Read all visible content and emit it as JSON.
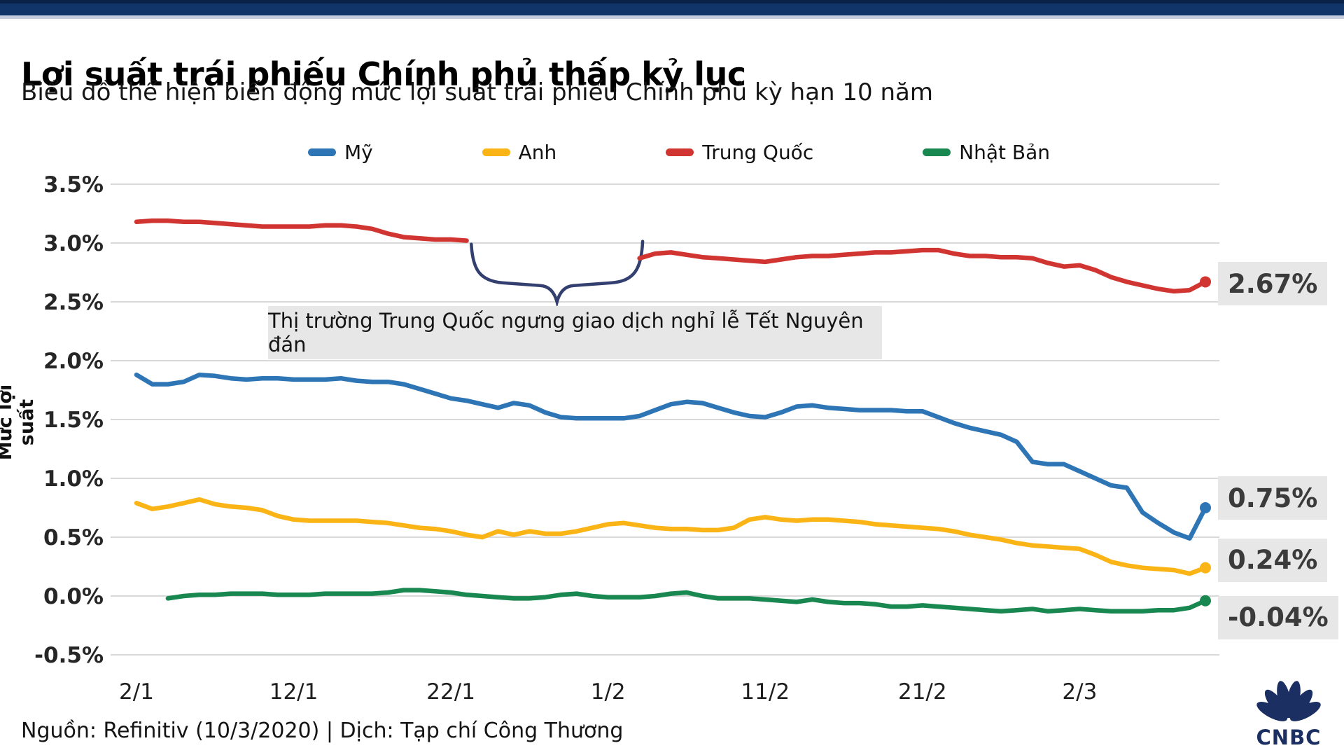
{
  "header": {
    "title": "Lợi suất trái phiếu Chính phủ thấp kỷ lục",
    "subtitle": "Biểu đồ thể hiện biến động mức lợi suất trái phiếu Chính phủ kỳ hạn 10 năm"
  },
  "source_line": "Nguồn: Refinitiv (10/3/2020) | Dịch: Tạp chí Công Thương",
  "logo_text": "CNBC",
  "colors": {
    "topbar": "#113469",
    "gridline": "#d9d9d9",
    "label_bg": "#e7e7e7",
    "brace": "#333f6e",
    "logo_navy": "#1b2f63"
  },
  "chart_data": {
    "type": "line",
    "title": "Lợi suất trái phiếu Chính phủ thấp kỷ lục",
    "ylabel": "Mức lợi suất",
    "ylim": [
      -0.5,
      3.5
    ],
    "grid": "horizontal",
    "legend_position": "top",
    "y_ticks": [
      3.5,
      3.0,
      2.5,
      2.0,
      1.5,
      1.0,
      0.5,
      0.0,
      -0.5
    ],
    "y_tick_labels": [
      "3.5%",
      "3.0%",
      "2.5%",
      "2.0%",
      "1.5%",
      "1.0%",
      "0.5%",
      "0.0%",
      "-0.5%"
    ],
    "x_tick_days": [
      0,
      10,
      20,
      30,
      40,
      50,
      60
    ],
    "x_tick_labels": [
      "2/1",
      "12/1",
      "22/1",
      "1/2",
      "11/2",
      "21/2",
      "2/3"
    ],
    "x_range_days": [
      0,
      68
    ],
    "annotation": {
      "text": "Thị trường Trung Quốc ngưng giao dịch nghỉ lễ Tết Nguyên đán",
      "brace": {
        "from_day": 21.3,
        "to_day": 32.2,
        "top_v": 2.99,
        "body_v": 2.68,
        "tip_v": 2.5
      }
    },
    "series": [
      {
        "name": "Mỹ",
        "color": "#2e75b6",
        "end_label": "0.75%",
        "label_dy": -14,
        "segments": [
          [
            [
              0,
              1.88
            ],
            [
              1,
              1.8
            ],
            [
              2,
              1.8
            ],
            [
              3,
              1.82
            ],
            [
              4,
              1.88
            ],
            [
              5,
              1.87
            ],
            [
              6,
              1.85
            ],
            [
              7,
              1.84
            ],
            [
              8,
              1.85
            ],
            [
              9,
              1.85
            ],
            [
              10,
              1.84
            ],
            [
              11,
              1.84
            ],
            [
              12,
              1.84
            ],
            [
              13,
              1.85
            ],
            [
              14,
              1.83
            ],
            [
              15,
              1.82
            ],
            [
              16,
              1.82
            ],
            [
              17,
              1.8
            ],
            [
              18,
              1.76
            ],
            [
              19,
              1.72
            ],
            [
              20,
              1.68
            ],
            [
              21,
              1.66
            ],
            [
              22,
              1.63
            ],
            [
              23,
              1.6
            ],
            [
              24,
              1.64
            ],
            [
              25,
              1.62
            ],
            [
              26,
              1.56
            ],
            [
              27,
              1.52
            ],
            [
              28,
              1.51
            ],
            [
              29,
              1.51
            ],
            [
              30,
              1.51
            ],
            [
              31,
              1.51
            ],
            [
              32,
              1.53
            ],
            [
              33,
              1.58
            ],
            [
              34,
              1.63
            ],
            [
              35,
              1.65
            ],
            [
              36,
              1.64
            ],
            [
              37,
              1.6
            ],
            [
              38,
              1.56
            ],
            [
              39,
              1.53
            ],
            [
              40,
              1.52
            ],
            [
              41,
              1.56
            ],
            [
              42,
              1.61
            ],
            [
              43,
              1.62
            ],
            [
              44,
              1.6
            ],
            [
              45,
              1.59
            ],
            [
              46,
              1.58
            ],
            [
              47,
              1.58
            ],
            [
              48,
              1.58
            ],
            [
              49,
              1.57
            ],
            [
              50,
              1.57
            ],
            [
              51,
              1.52
            ],
            [
              52,
              1.47
            ],
            [
              53,
              1.43
            ],
            [
              54,
              1.4
            ],
            [
              55,
              1.37
            ],
            [
              56,
              1.31
            ],
            [
              57,
              1.14
            ],
            [
              58,
              1.12
            ],
            [
              59,
              1.12
            ],
            [
              60,
              1.06
            ],
            [
              61,
              1.0
            ],
            [
              62,
              0.94
            ],
            [
              63,
              0.92
            ],
            [
              64,
              0.71
            ],
            [
              65,
              0.62
            ],
            [
              66,
              0.54
            ],
            [
              67,
              0.49
            ],
            [
              68,
              0.75
            ]
          ]
        ]
      },
      {
        "name": "Anh",
        "color": "#fbb416",
        "end_label": "0.24%",
        "label_dy": -11,
        "segments": [
          [
            [
              0,
              0.79
            ],
            [
              1,
              0.74
            ],
            [
              2,
              0.76
            ],
            [
              3,
              0.79
            ],
            [
              4,
              0.82
            ],
            [
              5,
              0.78
            ],
            [
              6,
              0.76
            ],
            [
              7,
              0.75
            ],
            [
              8,
              0.73
            ],
            [
              9,
              0.68
            ],
            [
              10,
              0.65
            ],
            [
              11,
              0.64
            ],
            [
              12,
              0.64
            ],
            [
              13,
              0.64
            ],
            [
              14,
              0.64
            ],
            [
              15,
              0.63
            ],
            [
              16,
              0.62
            ],
            [
              17,
              0.6
            ],
            [
              18,
              0.58
            ],
            [
              19,
              0.57
            ],
            [
              20,
              0.55
            ],
            [
              21,
              0.52
            ],
            [
              22,
              0.5
            ],
            [
              23,
              0.55
            ],
            [
              24,
              0.52
            ],
            [
              25,
              0.55
            ],
            [
              26,
              0.53
            ],
            [
              27,
              0.53
            ],
            [
              28,
              0.55
            ],
            [
              29,
              0.58
            ],
            [
              30,
              0.61
            ],
            [
              31,
              0.62
            ],
            [
              32,
              0.6
            ],
            [
              33,
              0.58
            ],
            [
              34,
              0.57
            ],
            [
              35,
              0.57
            ],
            [
              36,
              0.56
            ],
            [
              37,
              0.56
            ],
            [
              38,
              0.58
            ],
            [
              39,
              0.65
            ],
            [
              40,
              0.67
            ],
            [
              41,
              0.65
            ],
            [
              42,
              0.64
            ],
            [
              43,
              0.65
            ],
            [
              44,
              0.65
            ],
            [
              45,
              0.64
            ],
            [
              46,
              0.63
            ],
            [
              47,
              0.61
            ],
            [
              48,
              0.6
            ],
            [
              49,
              0.59
            ],
            [
              50,
              0.58
            ],
            [
              51,
              0.57
            ],
            [
              52,
              0.55
            ],
            [
              53,
              0.52
            ],
            [
              54,
              0.5
            ],
            [
              55,
              0.48
            ],
            [
              56,
              0.45
            ],
            [
              57,
              0.43
            ],
            [
              58,
              0.42
            ],
            [
              59,
              0.41
            ],
            [
              60,
              0.4
            ],
            [
              61,
              0.35
            ],
            [
              62,
              0.29
            ],
            [
              63,
              0.26
            ],
            [
              64,
              0.24
            ],
            [
              65,
              0.23
            ],
            [
              66,
              0.22
            ],
            [
              67,
              0.19
            ],
            [
              68,
              0.24
            ]
          ]
        ]
      },
      {
        "name": "Trung Quốc",
        "color": "#d13531",
        "end_label": "2.67%",
        "label_dy": 3,
        "segments": [
          [
            [
              0,
              3.18
            ],
            [
              1,
              3.19
            ],
            [
              2,
              3.19
            ],
            [
              3,
              3.18
            ],
            [
              4,
              3.18
            ],
            [
              5,
              3.17
            ],
            [
              6,
              3.16
            ],
            [
              7,
              3.15
            ],
            [
              8,
              3.14
            ],
            [
              9,
              3.14
            ],
            [
              10,
              3.14
            ],
            [
              11,
              3.14
            ],
            [
              12,
              3.15
            ],
            [
              13,
              3.15
            ],
            [
              14,
              3.14
            ],
            [
              15,
              3.12
            ],
            [
              16,
              3.08
            ],
            [
              17,
              3.05
            ],
            [
              18,
              3.04
            ],
            [
              19,
              3.03
            ],
            [
              20,
              3.03
            ],
            [
              21,
              3.02
            ]
          ],
          [
            [
              32,
              2.87
            ],
            [
              33,
              2.91
            ],
            [
              34,
              2.92
            ],
            [
              35,
              2.9
            ],
            [
              36,
              2.88
            ],
            [
              37,
              2.87
            ],
            [
              38,
              2.86
            ],
            [
              39,
              2.85
            ],
            [
              40,
              2.84
            ],
            [
              41,
              2.86
            ],
            [
              42,
              2.88
            ],
            [
              43,
              2.89
            ],
            [
              44,
              2.89
            ],
            [
              45,
              2.9
            ],
            [
              46,
              2.91
            ],
            [
              47,
              2.92
            ],
            [
              48,
              2.92
            ],
            [
              49,
              2.93
            ],
            [
              50,
              2.94
            ],
            [
              51,
              2.94
            ],
            [
              52,
              2.91
            ],
            [
              53,
              2.89
            ],
            [
              54,
              2.89
            ],
            [
              55,
              2.88
            ],
            [
              56,
              2.88
            ],
            [
              57,
              2.87
            ],
            [
              58,
              2.83
            ],
            [
              59,
              2.8
            ],
            [
              60,
              2.81
            ],
            [
              61,
              2.77
            ],
            [
              62,
              2.71
            ],
            [
              63,
              2.67
            ],
            [
              64,
              2.64
            ],
            [
              65,
              2.61
            ],
            [
              66,
              2.59
            ],
            [
              67,
              2.6
            ],
            [
              68,
              2.67
            ]
          ]
        ]
      },
      {
        "name": "Nhật Bản",
        "color": "#188750",
        "end_label": "-0.04%",
        "label_dy": 24,
        "segments": [
          [
            [
              2,
              -0.02
            ],
            [
              3,
              0.0
            ],
            [
              4,
              0.01
            ],
            [
              5,
              0.01
            ],
            [
              6,
              0.02
            ],
            [
              7,
              0.02
            ],
            [
              8,
              0.02
            ],
            [
              9,
              0.01
            ],
            [
              10,
              0.01
            ],
            [
              11,
              0.01
            ],
            [
              12,
              0.02
            ],
            [
              13,
              0.02
            ],
            [
              14,
              0.02
            ],
            [
              15,
              0.02
            ],
            [
              16,
              0.03
            ],
            [
              17,
              0.05
            ],
            [
              18,
              0.05
            ],
            [
              19,
              0.04
            ],
            [
              20,
              0.03
            ],
            [
              21,
              0.01
            ],
            [
              22,
              0.0
            ],
            [
              23,
              -0.01
            ],
            [
              24,
              -0.02
            ],
            [
              25,
              -0.02
            ],
            [
              26,
              -0.01
            ],
            [
              27,
              0.01
            ],
            [
              28,
              0.02
            ],
            [
              29,
              0.0
            ],
            [
              30,
              -0.01
            ],
            [
              31,
              -0.01
            ],
            [
              32,
              -0.01
            ],
            [
              33,
              0.0
            ],
            [
              34,
              0.02
            ],
            [
              35,
              0.03
            ],
            [
              36,
              0.0
            ],
            [
              37,
              -0.02
            ],
            [
              38,
              -0.02
            ],
            [
              39,
              -0.02
            ],
            [
              40,
              -0.03
            ],
            [
              41,
              -0.04
            ],
            [
              42,
              -0.05
            ],
            [
              43,
              -0.03
            ],
            [
              44,
              -0.05
            ],
            [
              45,
              -0.06
            ],
            [
              46,
              -0.06
            ],
            [
              47,
              -0.07
            ],
            [
              48,
              -0.09
            ],
            [
              49,
              -0.09
            ],
            [
              50,
              -0.08
            ],
            [
              51,
              -0.09
            ],
            [
              52,
              -0.1
            ],
            [
              53,
              -0.11
            ],
            [
              54,
              -0.12
            ],
            [
              55,
              -0.13
            ],
            [
              56,
              -0.12
            ],
            [
              57,
              -0.11
            ],
            [
              58,
              -0.13
            ],
            [
              59,
              -0.12
            ],
            [
              60,
              -0.11
            ],
            [
              61,
              -0.12
            ],
            [
              62,
              -0.13
            ],
            [
              63,
              -0.13
            ],
            [
              64,
              -0.13
            ],
            [
              65,
              -0.12
            ],
            [
              66,
              -0.12
            ],
            [
              67,
              -0.1
            ],
            [
              68,
              -0.04
            ]
          ]
        ]
      }
    ]
  }
}
